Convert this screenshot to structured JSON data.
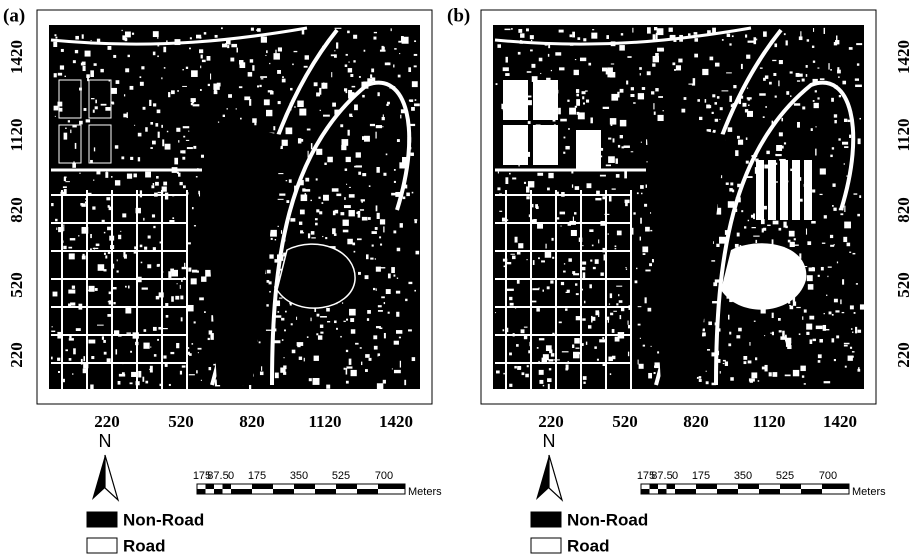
{
  "panels": [
    {
      "label": "(a)",
      "x_ticks": [
        220,
        520,
        820,
        1120,
        1420
      ],
      "y_ticks": [
        1420,
        1120,
        820,
        520,
        220
      ],
      "north": "N",
      "scale_labels": [
        175,
        87.5,
        0,
        175,
        350,
        525,
        700
      ],
      "scale_unit": "Meters",
      "legend": [
        {
          "label": "Non-Road",
          "color": "#000000"
        },
        {
          "label": "Road",
          "color": "#ffffff"
        }
      ]
    },
    {
      "label": "(b)",
      "x_ticks": [
        220,
        520,
        820,
        1120,
        1420
      ],
      "y_ticks": [
        1420,
        1120,
        820,
        520,
        220
      ],
      "north": "N",
      "scale_labels": [
        175,
        87.5,
        0,
        175,
        350,
        525,
        700
      ],
      "scale_unit": "Meters",
      "legend": [
        {
          "label": "Non-Road",
          "color": "#000000"
        },
        {
          "label": "Road",
          "color": "#ffffff"
        }
      ]
    }
  ]
}
